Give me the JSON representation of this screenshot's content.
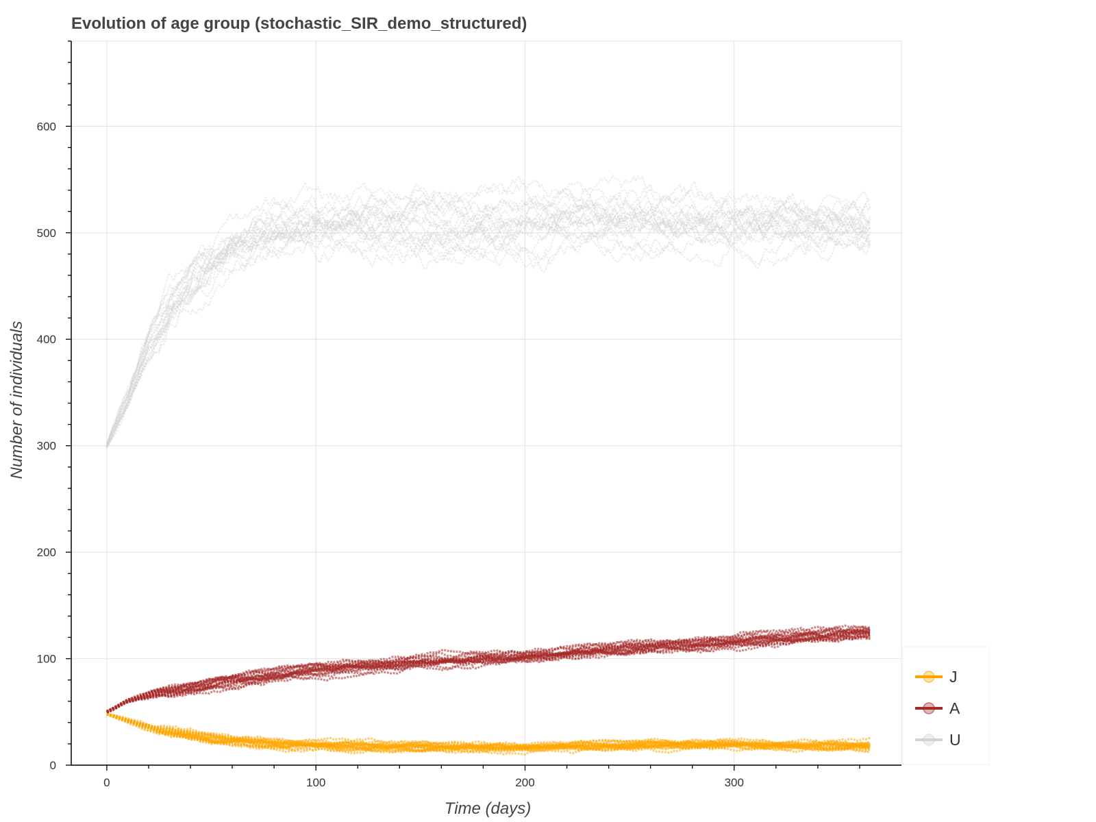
{
  "chart_data": {
    "type": "line",
    "title": "Evolution of age group (stochastic_SIR_demo_structured)",
    "xlabel": "Time (days)",
    "ylabel": "Number of individuals",
    "xlim": [
      -17,
      380
    ],
    "ylim": [
      0,
      680
    ],
    "xticks": [
      0,
      100,
      200,
      300
    ],
    "yticks": [
      0,
      100,
      200,
      300,
      400,
      500,
      600
    ],
    "grid": true,
    "legend_position": "bottom-right outside plot",
    "runs_per_series": 20,
    "x_max": 365,
    "series": [
      {
        "name": "J",
        "color": "#FFA500",
        "points": [
          [
            0,
            48
          ],
          [
            10,
            42
          ],
          [
            25,
            33
          ],
          [
            50,
            25
          ],
          [
            80,
            20
          ],
          [
            100,
            19
          ],
          [
            150,
            18
          ],
          [
            200,
            17
          ],
          [
            250,
            19
          ],
          [
            300,
            20
          ],
          [
            365,
            19
          ]
        ]
      },
      {
        "name": "A",
        "color": "#A52A2A",
        "points": [
          [
            0,
            50
          ],
          [
            10,
            60
          ],
          [
            25,
            68
          ],
          [
            50,
            76
          ],
          [
            80,
            85
          ],
          [
            100,
            90
          ],
          [
            150,
            97
          ],
          [
            200,
            103
          ],
          [
            250,
            110
          ],
          [
            300,
            117
          ],
          [
            365,
            125
          ]
        ]
      },
      {
        "name": "U",
        "color": "#D3D3D3",
        "points": [
          [
            0,
            300
          ],
          [
            10,
            345
          ],
          [
            20,
            395
          ],
          [
            30,
            435
          ],
          [
            45,
            470
          ],
          [
            60,
            495
          ],
          [
            80,
            505
          ],
          [
            100,
            507
          ],
          [
            150,
            510
          ],
          [
            200,
            512
          ],
          [
            250,
            512
          ],
          [
            300,
            508
          ],
          [
            365,
            505
          ]
        ]
      }
    ]
  }
}
